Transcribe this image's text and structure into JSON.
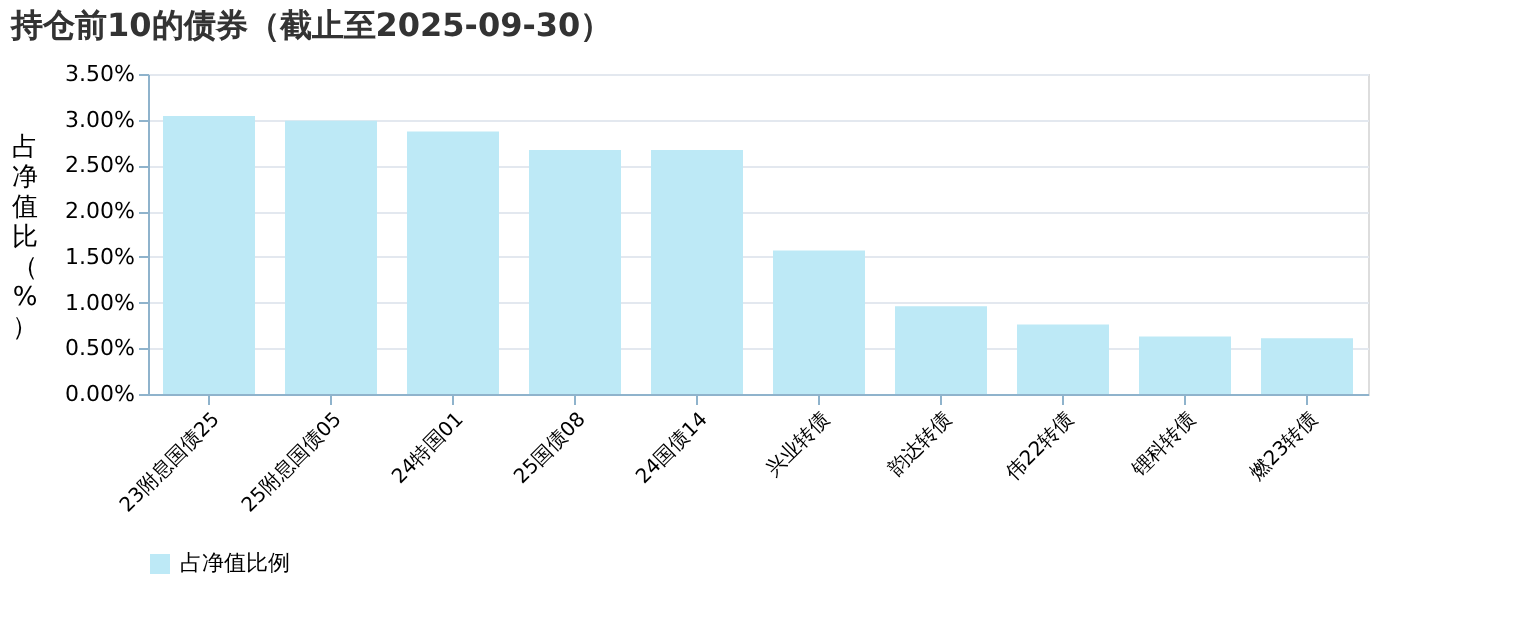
{
  "chart_data": {
    "type": "bar",
    "title": "持仓前10的债券（截止至2025-09-30）",
    "ylabel": "占净值比（%）",
    "categories": [
      "23附息国债25",
      "25附息国债05",
      "24特国01",
      "25国债08",
      "24国债14",
      "兴业转债",
      "韵达转债",
      "伟22转债",
      "锂科转债",
      "燃23转债"
    ],
    "series": [
      {
        "name": "占净值比例",
        "color": "#bde9f6",
        "values": [
          3.04,
          2.99,
          2.87,
          2.67,
          2.67,
          1.57,
          0.96,
          0.76,
          0.63,
          0.61
        ]
      }
    ],
    "ylim": [
      0,
      3.5
    ],
    "yticks": [
      {
        "value": 0,
        "label": "0.00%"
      },
      {
        "value": 0.5,
        "label": "0.50%"
      },
      {
        "value": 1,
        "label": "1.00%"
      },
      {
        "value": 1.5,
        "label": "1.50%"
      },
      {
        "value": 2,
        "label": "2.00%"
      },
      {
        "value": 2.5,
        "label": "2.50%"
      },
      {
        "value": 3,
        "label": "3.00%"
      },
      {
        "value": 3.5,
        "label": "3.50%"
      }
    ],
    "grid": "y",
    "legend": "bottom"
  }
}
